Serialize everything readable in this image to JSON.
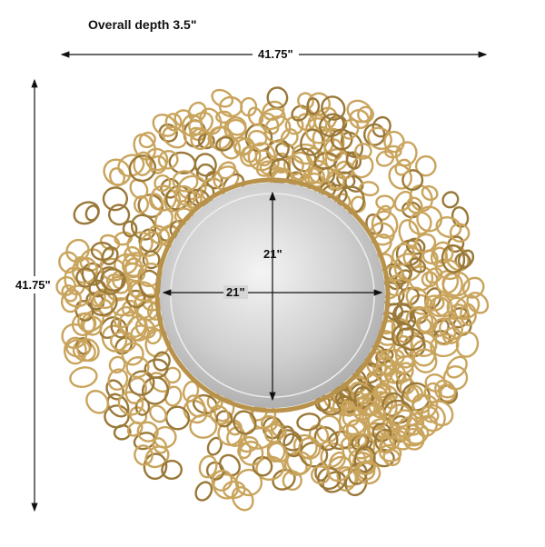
{
  "title": "Overall depth 3.5\"",
  "dimensions": {
    "overall_width": "41.75\"",
    "overall_height": "41.75\"",
    "mirror_height": "21\"",
    "mirror_width": "21\""
  },
  "colors": {
    "frame": "#c9a45c",
    "frame_dark": "#9a7838",
    "mirror": "#d8d8d8",
    "arrow": "#111111"
  }
}
